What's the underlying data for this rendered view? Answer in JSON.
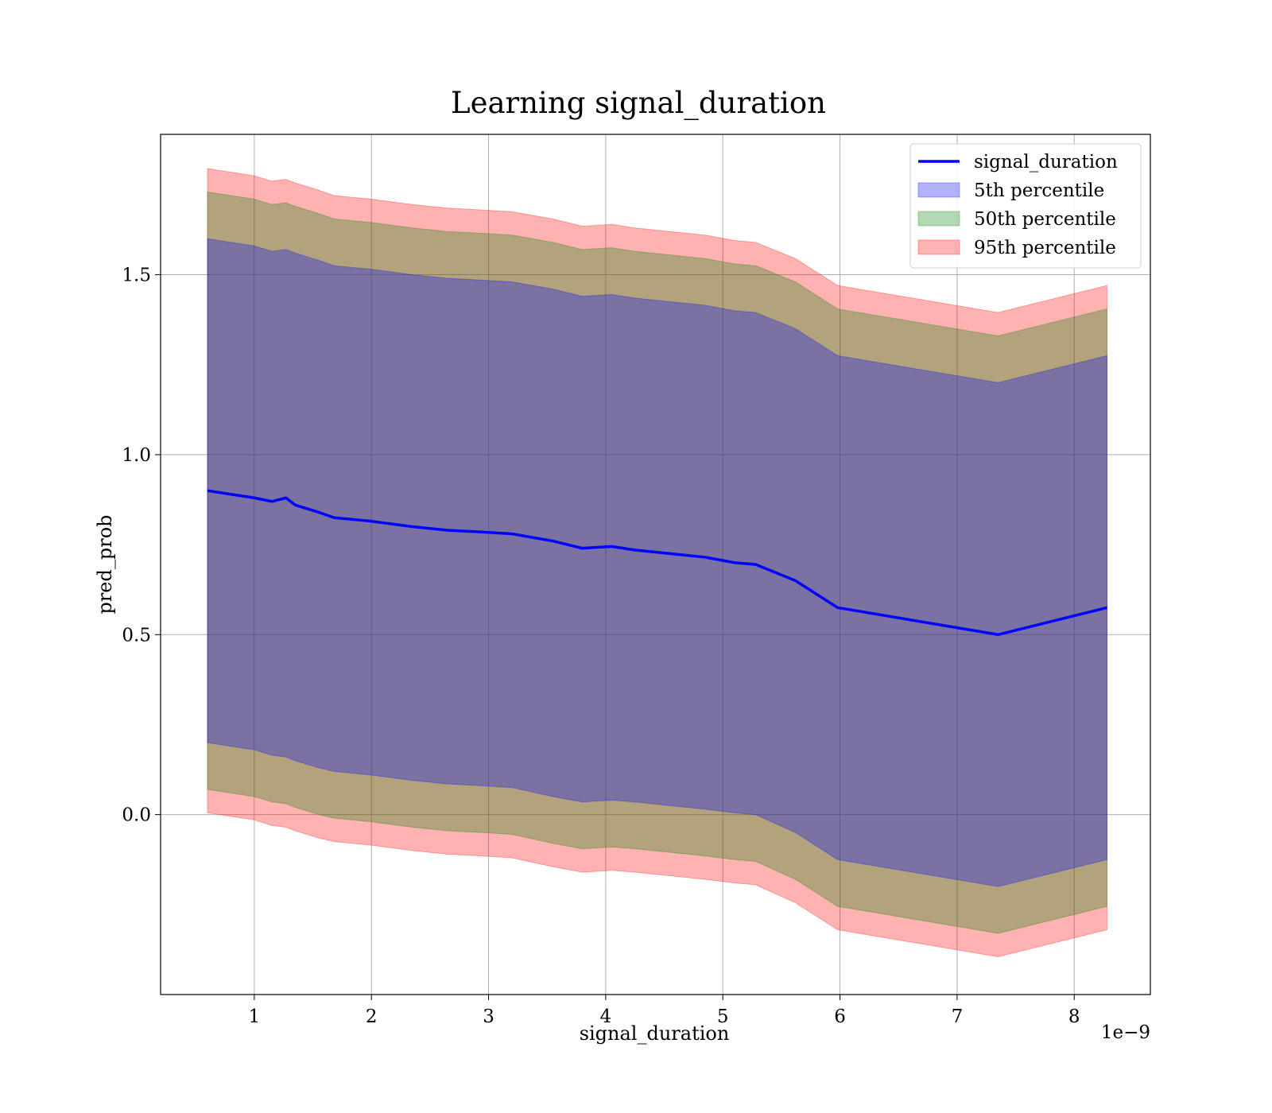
{
  "chart_data": {
    "type": "area",
    "title": "Learning signal_duration",
    "xlabel": "signal_duration",
    "ylabel": "pred_prob",
    "x_offset_text": "1e−9",
    "x_scale_note": "x values are in units of 1e-9 as printed by the axis multiplier",
    "xlim": [
      0.2,
      8.65
    ],
    "ylim": [
      -0.5,
      1.89
    ],
    "grid": true,
    "legend_position": "top-right",
    "x_ticks": [
      1,
      2,
      3,
      4,
      5,
      6,
      7,
      8
    ],
    "y_ticks": [
      0.0,
      0.5,
      1.0,
      1.5
    ],
    "x_tick_labels": [
      "1",
      "2",
      "3",
      "4",
      "5",
      "6",
      "7",
      "8"
    ],
    "y_tick_labels": [
      "0.0",
      "0.5",
      "1.0",
      "1.5"
    ],
    "x": [
      0.6,
      0.8,
      1.0,
      1.15,
      1.27,
      1.35,
      1.55,
      1.68,
      2.0,
      2.35,
      2.65,
      2.95,
      3.2,
      3.55,
      3.8,
      4.05,
      4.25,
      4.55,
      4.85,
      5.1,
      5.28,
      5.62,
      5.98,
      7.35,
      8.28
    ],
    "series": [
      {
        "name": "signal_duration",
        "kind": "line",
        "color": "#0000ff",
        "values": [
          0.9,
          0.89,
          0.88,
          0.87,
          0.88,
          0.86,
          0.84,
          0.825,
          0.815,
          0.8,
          0.79,
          0.785,
          0.78,
          0.76,
          0.74,
          0.745,
          0.735,
          0.725,
          0.715,
          0.7,
          0.695,
          0.65,
          0.575,
          0.5,
          0.575
        ]
      },
      {
        "name": "5th percentile",
        "kind": "band",
        "color": "#0000ff",
        "lower": [
          0.2,
          0.19,
          0.18,
          0.165,
          0.16,
          0.15,
          0.13,
          0.12,
          0.11,
          0.095,
          0.085,
          0.08,
          0.075,
          0.05,
          0.035,
          0.04,
          0.035,
          0.025,
          0.015,
          0.005,
          0.0,
          -0.05,
          -0.125,
          -0.2,
          -0.125
        ],
        "upper": [
          1.6,
          1.59,
          1.58,
          1.565,
          1.57,
          1.56,
          1.54,
          1.525,
          1.515,
          1.5,
          1.49,
          1.485,
          1.48,
          1.46,
          1.44,
          1.445,
          1.435,
          1.425,
          1.415,
          1.4,
          1.395,
          1.35,
          1.275,
          1.2,
          1.275
        ]
      },
      {
        "name": "50th percentile",
        "kind": "band",
        "color": "#008000",
        "lower": [
          0.07,
          0.06,
          0.05,
          0.035,
          0.03,
          0.02,
          0.0,
          -0.01,
          -0.02,
          -0.035,
          -0.045,
          -0.05,
          -0.055,
          -0.08,
          -0.095,
          -0.09,
          -0.095,
          -0.105,
          -0.115,
          -0.125,
          -0.13,
          -0.18,
          -0.255,
          -0.33,
          -0.255
        ],
        "upper": [
          1.73,
          1.72,
          1.71,
          1.695,
          1.7,
          1.69,
          1.67,
          1.655,
          1.645,
          1.63,
          1.62,
          1.615,
          1.61,
          1.59,
          1.57,
          1.575,
          1.565,
          1.555,
          1.545,
          1.53,
          1.525,
          1.48,
          1.405,
          1.33,
          1.405
        ]
      },
      {
        "name": "95th percentile",
        "kind": "band",
        "color": "#ff0000",
        "lower": [
          0.005,
          -0.005,
          -0.015,
          -0.03,
          -0.035,
          -0.045,
          -0.065,
          -0.075,
          -0.085,
          -0.1,
          -0.11,
          -0.115,
          -0.12,
          -0.145,
          -0.16,
          -0.155,
          -0.16,
          -0.17,
          -0.18,
          -0.19,
          -0.195,
          -0.245,
          -0.32,
          -0.395,
          -0.32
        ],
        "upper": [
          1.795,
          1.785,
          1.775,
          1.76,
          1.765,
          1.755,
          1.735,
          1.72,
          1.71,
          1.695,
          1.685,
          1.68,
          1.675,
          1.655,
          1.635,
          1.64,
          1.63,
          1.62,
          1.61,
          1.595,
          1.59,
          1.545,
          1.47,
          1.395,
          1.47
        ]
      }
    ]
  }
}
